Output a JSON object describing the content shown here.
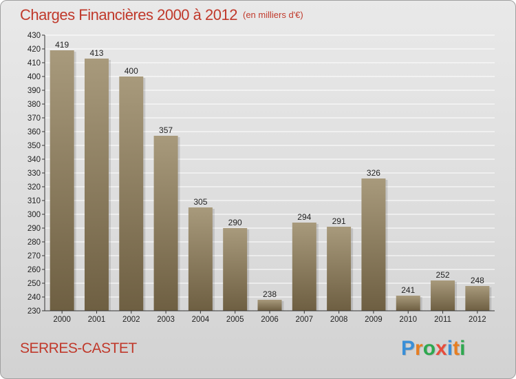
{
  "header": {
    "title": "Charges Financières 2000 à 2012",
    "subtitle": "(en milliers d'€)"
  },
  "footer": {
    "commune": "SERRES-CASTET",
    "logo_letters": [
      "P",
      "r",
      "o",
      "x",
      "i",
      "t",
      "i"
    ],
    "logo_colors": [
      "#3a8fd8",
      "#e67e22",
      "#2ea84f",
      "#e74c3c",
      "#3a8fd8",
      "#e67e22",
      "#2ea84f"
    ]
  },
  "colors": {
    "title": "#c0392b",
    "bar_top": "#a89a7c",
    "bar_bottom": "#6e5f42",
    "grid": "#ffffff",
    "axis": "#333333"
  },
  "chart_data": {
    "type": "bar",
    "title": "Charges Financières 2000 à 2012",
    "subtitle": "(en milliers d'€)",
    "categories": [
      "2000",
      "2001",
      "2002",
      "2003",
      "2004",
      "2005",
      "2006",
      "2007",
      "2008",
      "2009",
      "2010",
      "2011",
      "2012"
    ],
    "values": [
      419,
      413,
      400,
      357,
      305,
      290,
      238,
      294,
      291,
      326,
      241,
      252,
      248
    ],
    "ylim": [
      230,
      430
    ],
    "yticks": [
      230,
      240,
      250,
      260,
      270,
      280,
      290,
      300,
      310,
      320,
      330,
      340,
      350,
      360,
      370,
      380,
      390,
      400,
      410,
      420,
      430
    ],
    "grid": true,
    "xlabel": "",
    "ylabel": ""
  }
}
